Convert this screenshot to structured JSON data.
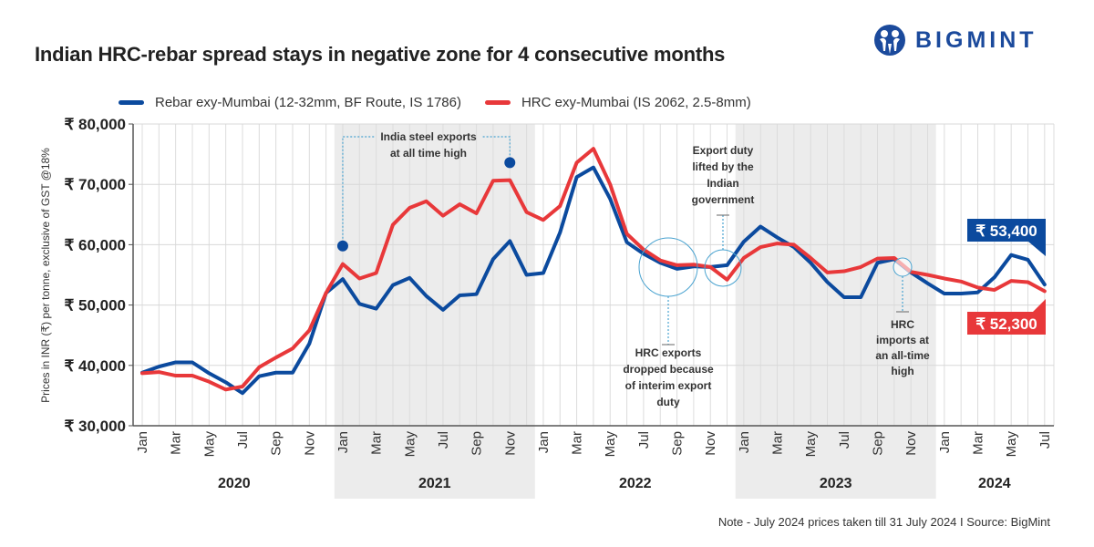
{
  "header": {
    "title": "Indian HRC-rebar spread stays in negative zone for 4 consecutive months",
    "brand": "BIGMINT"
  },
  "note": "Note - July 2024 prices taken till  31 July 2024  I  Source: BigMint",
  "colors": {
    "rebar": "#0b4a9e",
    "hrc": "#e8383a",
    "shade": "#ececec",
    "annotation": "#4aa3d0",
    "brand": "#1b4a9c"
  },
  "chart_data": {
    "type": "line",
    "title": "Indian HRC-rebar spread stays in negative zone for 4 consecutive months",
    "ylabel": "Prices in INR (₹) per tonne, exclusive of GST @18%",
    "xlabel": "",
    "ylim": [
      30000,
      80000
    ],
    "yticks": [
      30000,
      40000,
      50000,
      60000,
      70000,
      80000
    ],
    "ytick_labels": [
      "₹ 30,000",
      "₹ 40,000",
      "₹ 50,000",
      "₹ 60,000",
      "₹ 70,000",
      "₹ 80,000"
    ],
    "grid": true,
    "legend_position": "top",
    "years": [
      {
        "label": "2020",
        "start": 0,
        "end": 11,
        "shaded": false
      },
      {
        "label": "2021",
        "start": 12,
        "end": 23,
        "shaded": true
      },
      {
        "label": "2022",
        "start": 24,
        "end": 35,
        "shaded": false
      },
      {
        "label": "2023",
        "start": 36,
        "end": 47,
        "shaded": true
      },
      {
        "label": "2024",
        "start": 48,
        "end": 54,
        "shaded": false
      }
    ],
    "x_tick_labels": [
      "Jan",
      "Mar",
      "May",
      "Jul",
      "Sep",
      "Nov",
      "Jan",
      "Mar",
      "May",
      "Jul",
      "Sep",
      "Nov",
      "Jan",
      "Mar",
      "May",
      "Jul",
      "Sep",
      "Nov",
      "Jan",
      "Mar",
      "May",
      "Jul",
      "Sep",
      "Nov",
      "Jan",
      "Mar",
      "May",
      "Jul"
    ],
    "x": [
      "Jan 2020",
      "Feb 2020",
      "Mar 2020",
      "Apr 2020",
      "May 2020",
      "Jun 2020",
      "Jul 2020",
      "Aug 2020",
      "Sep 2020",
      "Oct 2020",
      "Nov 2020",
      "Dec 2020",
      "Jan 2021",
      "Feb 2021",
      "Mar 2021",
      "Apr 2021",
      "May 2021",
      "Jun 2021",
      "Jul 2021",
      "Aug 2021",
      "Sep 2021",
      "Oct 2021",
      "Nov 2021",
      "Dec 2021",
      "Jan 2022",
      "Feb 2022",
      "Mar 2022",
      "Apr 2022",
      "May 2022",
      "Jun 2022",
      "Jul 2022",
      "Aug 2022",
      "Sep 2022",
      "Oct 2022",
      "Nov 2022",
      "Dec 2022",
      "Jan 2023",
      "Feb 2023",
      "Mar 2023",
      "Apr 2023",
      "May 2023",
      "Jun 2023",
      "Jul 2023",
      "Aug 2023",
      "Sep 2023",
      "Oct 2023",
      "Nov 2023",
      "Dec 2023",
      "Jan 2024",
      "Feb 2024",
      "Mar 2024",
      "Apr 2024",
      "May 2024",
      "Jun 2024",
      "Jul 2024"
    ],
    "series": [
      {
        "name": "Rebar exy-Mumbai (12-32mm, BF Route, IS 1786)",
        "key": "rebar",
        "values": [
          38800,
          39800,
          40500,
          40500,
          38700,
          37200,
          35400,
          38200,
          38800,
          38800,
          43600,
          52000,
          54300,
          50200,
          49400,
          53300,
          54500,
          51500,
          49200,
          51600,
          51800,
          57600,
          60600,
          55000,
          55300,
          62000,
          71200,
          72800,
          67600,
          60400,
          58500,
          57000,
          56000,
          56400,
          56300,
          56600,
          60500,
          63000,
          61200,
          59600,
          57000,
          53800,
          51300,
          51300,
          57000,
          57600,
          55400,
          53600,
          51900,
          51900,
          52100,
          54600,
          58300,
          57500,
          53400
        ]
      },
      {
        "name": "HRC exy-Mumbai (IS 2062, 2.5-8mm)",
        "key": "hrc",
        "values": [
          38700,
          38900,
          38300,
          38300,
          37300,
          36000,
          36500,
          39700,
          41300,
          42800,
          45800,
          52000,
          56800,
          54400,
          55300,
          63300,
          66100,
          67200,
          64800,
          66700,
          65200,
          70600,
          70700,
          65400,
          64100,
          66400,
          73600,
          75900,
          70000,
          61800,
          59200,
          57400,
          56600,
          56700,
          56300,
          54200,
          57800,
          59600,
          60200,
          60000,
          57800,
          55400,
          55600,
          56300,
          57700,
          57800,
          55500,
          55000,
          54400,
          53900,
          52900,
          52500,
          54000,
          53800,
          52300
        ]
      }
    ],
    "end_labels": [
      {
        "series": "rebar",
        "text": "₹ 53,400",
        "value": 53400
      },
      {
        "series": "hrc",
        "text": "₹ 52,300",
        "value": 52300
      }
    ],
    "annotations": [
      {
        "id": "exports-high",
        "text": [
          "India steel exports",
          "at all time high"
        ],
        "points": [
          {
            "month": 12,
            "value": 59800
          },
          {
            "month": 22,
            "value": 73600
          }
        ]
      },
      {
        "id": "interim-duty",
        "text": [
          "HRC exports",
          "dropped because",
          "of interim export",
          "duty"
        ],
        "month": 32,
        "value": 56000
      },
      {
        "id": "duty-lifted",
        "text": [
          "Export duty",
          "lifted by the",
          "Indian",
          "government"
        ],
        "month": 35,
        "value": 56000
      },
      {
        "id": "hrc-imports",
        "text": [
          "HRC",
          "imports at",
          "an all-time",
          "high"
        ],
        "month": 46,
        "value": 56500
      }
    ]
  }
}
